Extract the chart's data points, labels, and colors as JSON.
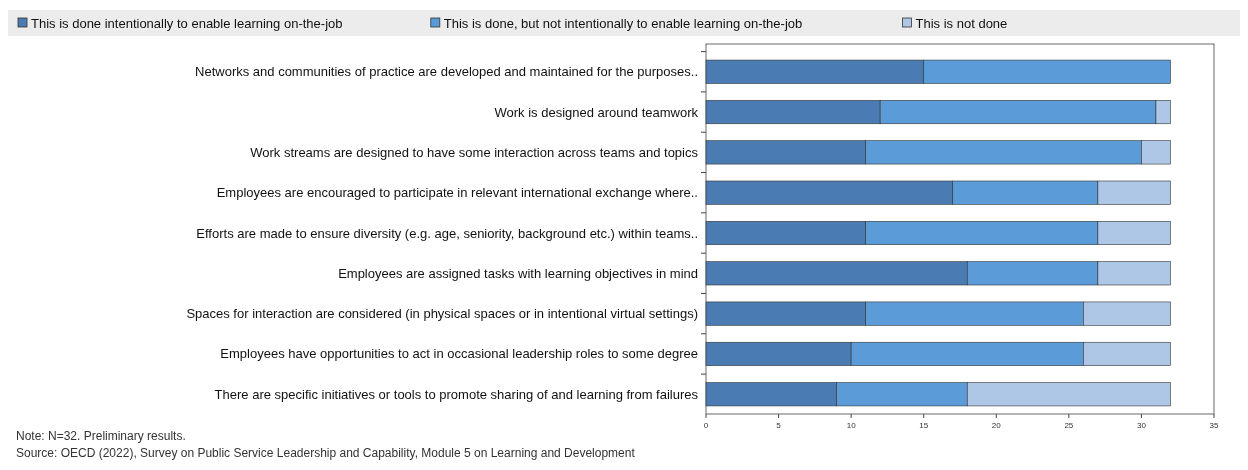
{
  "chart_data": {
    "type": "bar",
    "orientation": "horizontal",
    "stacked": true,
    "categories": [
      "Networks and communities of practice are developed and maintained for the purposes..",
      "Work is designed around teamwork",
      "Work streams are designed to have some interaction across teams and topics",
      "Employees are encouraged to participate in relevant international exchange where..",
      "Efforts are made to ensure diversity (e.g. age, seniority, background etc.) within teams..",
      "Employees are assigned tasks with learning objectives in mind",
      "Spaces for interaction are considered (in physical spaces or in intentional virtual settings)",
      "Employees have opportunities to act in occasional leadership roles to some degree",
      "There are specific initiatives or tools to promote sharing of and learning from failures"
    ],
    "series": [
      {
        "name": "This is done intentionally to enable learning on-the-job",
        "color": "#4a7bb2",
        "values": [
          15,
          12,
          11,
          17,
          11,
          18,
          11,
          10,
          9
        ]
      },
      {
        "name": "This is done, but not intentionally to enable learning on-the-job",
        "color": "#5b9bd8",
        "values": [
          17,
          19,
          19,
          10,
          16,
          9,
          15,
          16,
          9
        ]
      },
      {
        "name": "This is not done",
        "color": "#aec7e6",
        "values": [
          0,
          1,
          2,
          5,
          5,
          5,
          6,
          6,
          14
        ]
      }
    ],
    "xlim": [
      0,
      35
    ],
    "xticks": [
      0,
      5,
      10,
      15,
      20,
      25,
      30,
      35
    ],
    "legend": "top",
    "annotations": [
      "Note: N=32. Preliminary results.",
      "Source: OECD (2022), Survey on Public Service Leadership and Capability, Module 5 on Learning and Development"
    ]
  }
}
